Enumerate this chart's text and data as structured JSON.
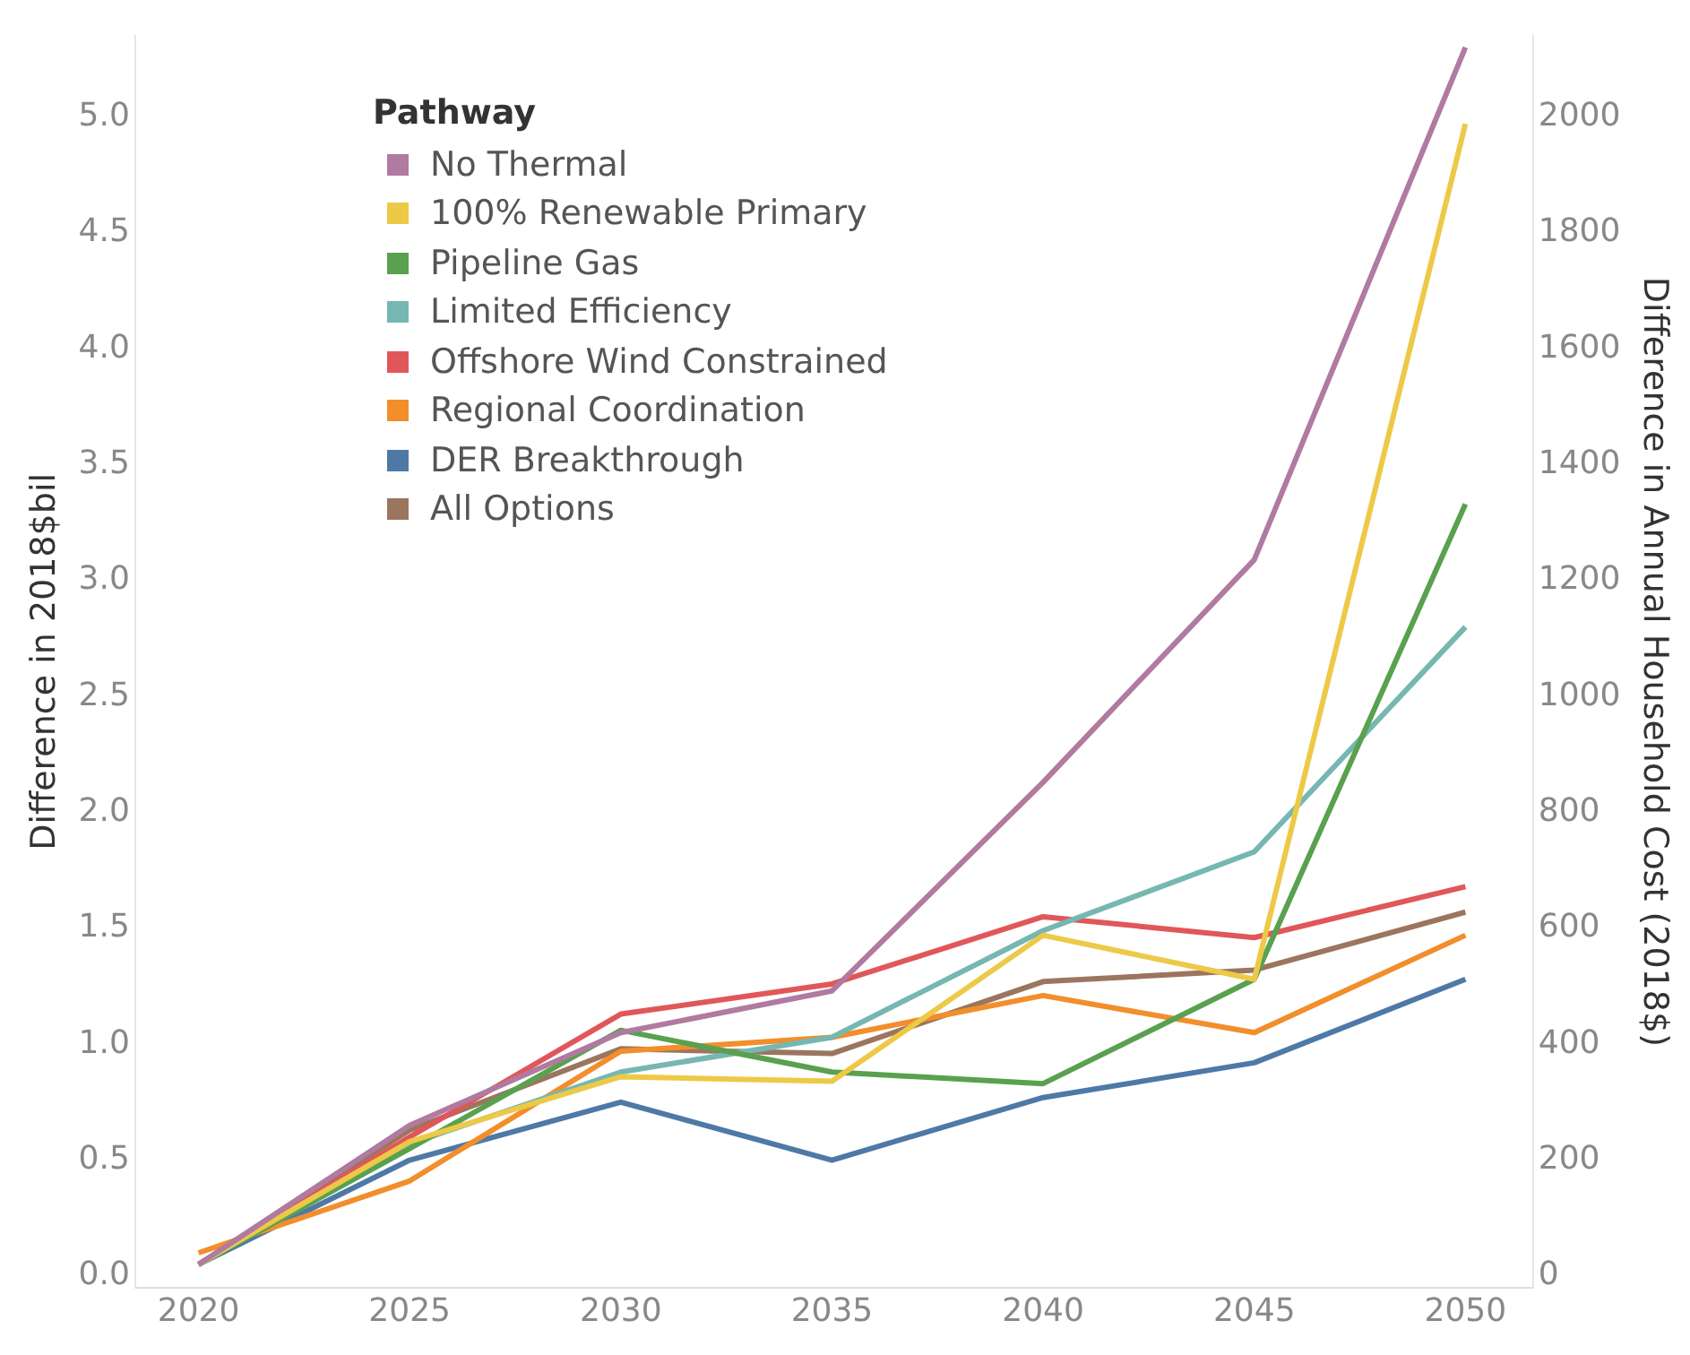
{
  "chart_data": {
    "type": "line",
    "xlabel": null,
    "ylabel": "Difference in 2018$bil",
    "y2label": "Difference in Annual Household Cost (2018$)",
    "legend_title": "Pathway",
    "legend": "top left",
    "grid": false,
    "marker": "none",
    "line_style": "solid",
    "x": [
      2020,
      2025,
      2030,
      2035,
      2040,
      2045,
      2050
    ],
    "xlim": [
      2018.5,
      2051.6
    ],
    "xticks": [
      2020,
      2025,
      2030,
      2035,
      2040,
      2045,
      2050
    ],
    "ylim": [
      -0.05,
      5.35
    ],
    "yticks": [
      {
        "value": 0,
        "label": "0.0"
      },
      0.5,
      {
        "value": 1,
        "label": "1.0"
      },
      1.5,
      {
        "value": 2,
        "label": "2.0"
      },
      2.5,
      {
        "value": 3,
        "label": "3.0"
      },
      3.5,
      {
        "value": 4,
        "label": "4.0"
      },
      4.5,
      {
        "value": 5,
        "label": "5.0"
      }
    ],
    "y2lim": [
      -20,
      2140
    ],
    "y2ticks": [
      0,
      200,
      400,
      600,
      800,
      1000,
      1200,
      1400,
      1600,
      1800,
      2000
    ],
    "series": [
      {
        "name": "No Thermal",
        "color": "#b07aa1",
        "values": [
          0.05,
          0.65,
          1.05,
          1.23,
          2.13,
          3.09,
          5.3
        ]
      },
      {
        "name": "100% Renewable Primary",
        "color": "#edc948",
        "values": [
          0.05,
          0.58,
          0.86,
          0.84,
          1.47,
          1.28,
          4.97
        ]
      },
      {
        "name": "Pipeline Gas",
        "color": "#59a14f",
        "values": [
          0.05,
          0.55,
          1.06,
          0.88,
          0.83,
          1.28,
          3.33
        ]
      },
      {
        "name": "Limited Efficiency",
        "color": "#76b7b2",
        "values": [
          0.05,
          0.57,
          0.88,
          1.03,
          1.49,
          1.83,
          2.8
        ]
      },
      {
        "name": "Offshore Wind Constrained",
        "color": "#e15759",
        "values": [
          0.05,
          0.6,
          1.13,
          1.26,
          1.55,
          1.46,
          1.68
        ]
      },
      {
        "name": "Regional Coordination",
        "color": "#f28e2b",
        "values": [
          0.1,
          0.41,
          0.97,
          1.03,
          1.21,
          1.05,
          1.47
        ]
      },
      {
        "name": "DER Breakthrough",
        "color": "#4e79a7",
        "values": [
          0.05,
          0.5,
          0.75,
          0.5,
          0.77,
          0.92,
          1.28
        ]
      },
      {
        "name": "All Options",
        "color": "#9c755f",
        "values": [
          0.05,
          0.63,
          0.98,
          0.96,
          1.27,
          1.32,
          1.57
        ]
      }
    ]
  }
}
